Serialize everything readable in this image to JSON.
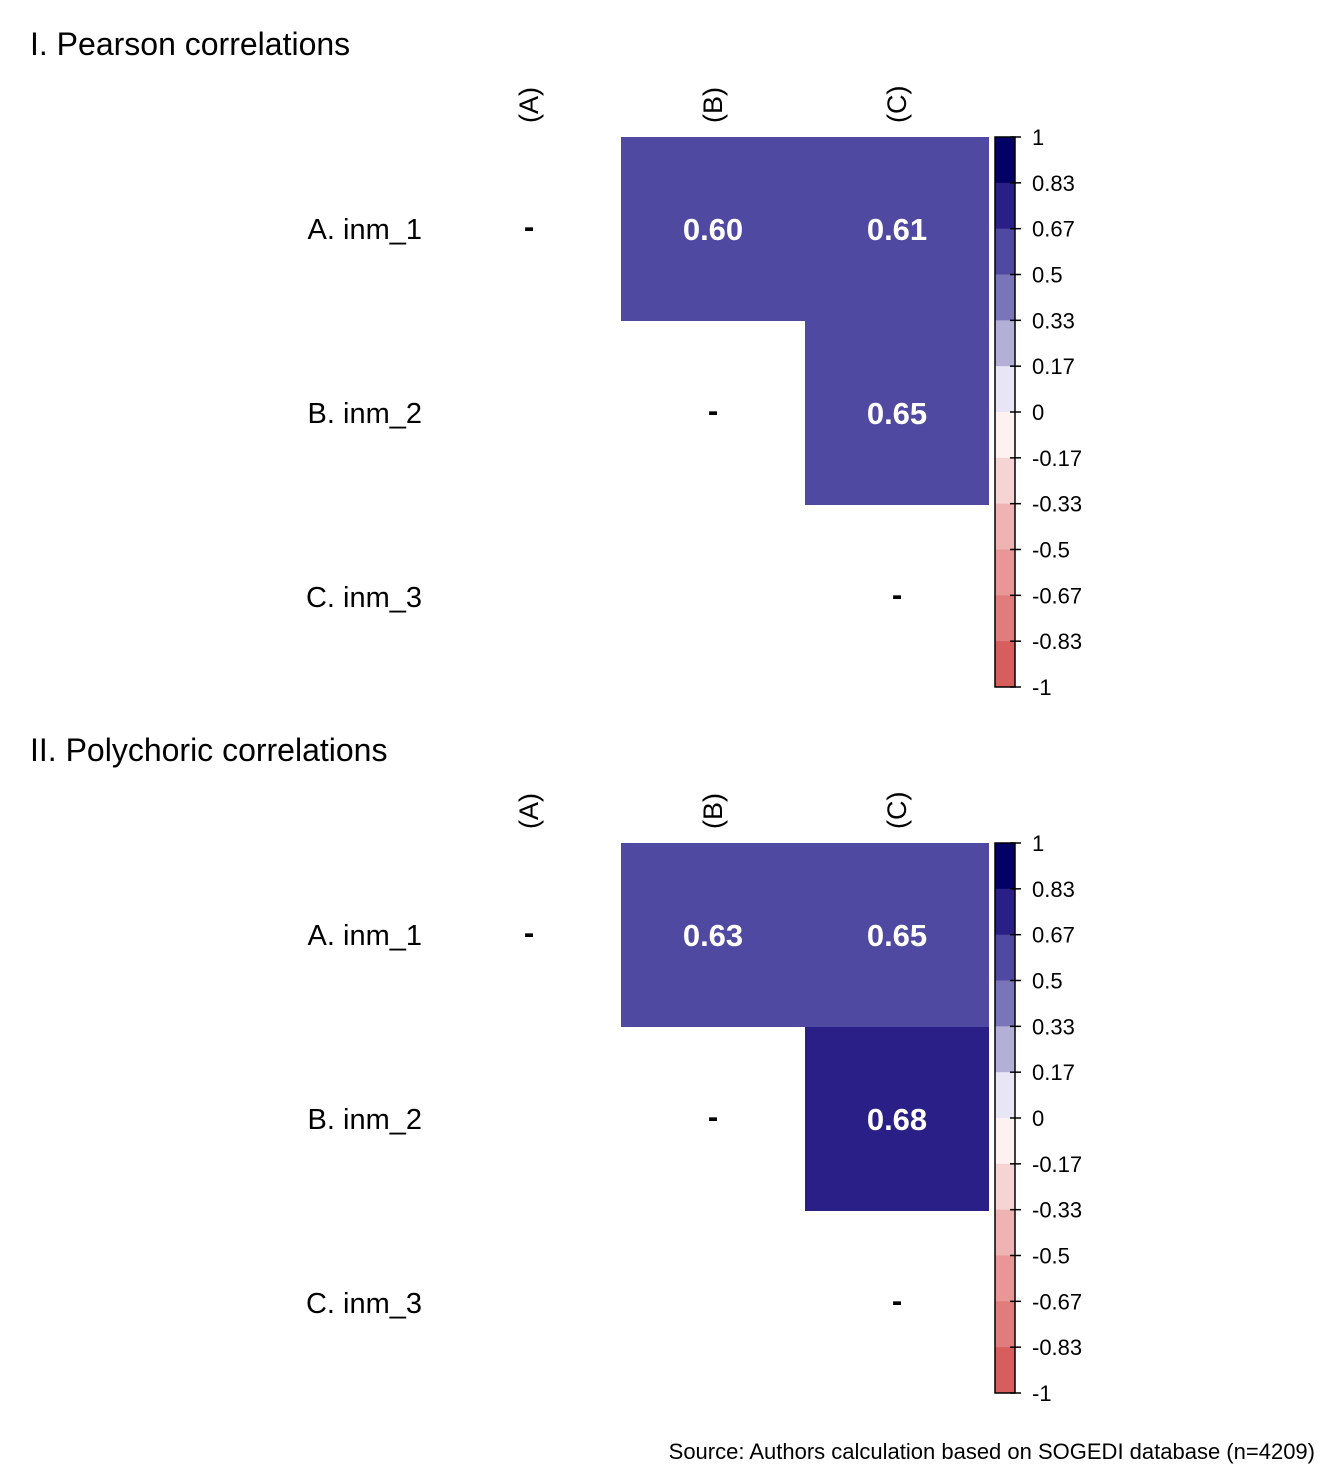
{
  "source": "Source: Authors calculation based on SOGEDI database (n=4209)",
  "colors": {
    "band_0_5": "#5049a1",
    "band_0_67": "#291f86"
  },
  "chart_data": [
    {
      "type": "heatmap",
      "title": "I. Pearson correlations",
      "row_labels": [
        "A. inm_1",
        "B. inm_2",
        "C. inm_3"
      ],
      "col_labels": [
        "(A)",
        "(B)",
        "(C)"
      ],
      "diagonal_mark": "-",
      "cells": [
        {
          "row": 0,
          "col": 1,
          "value": 0.6,
          "label": "0.60"
        },
        {
          "row": 0,
          "col": 2,
          "value": 0.61,
          "label": "0.61"
        },
        {
          "row": 1,
          "col": 2,
          "value": 0.65,
          "label": "0.65"
        }
      ],
      "legend": {
        "ticks": [
          "1",
          "0.83",
          "0.67",
          "0.5",
          "0.33",
          "0.17",
          "0",
          "-0.17",
          "-0.33",
          "-0.5",
          "-0.67",
          "-0.83",
          "-1"
        ],
        "bands": [
          "#030066",
          "#291f86",
          "#5049a1",
          "#7a74b8",
          "#b4afd6",
          "#e8e6f4",
          "#fdf1f1",
          "#f6d4d4",
          "#efb3b3",
          "#e89696",
          "#e07c7c",
          "#d85d5d"
        ]
      }
    },
    {
      "type": "heatmap",
      "title": "II. Polychoric correlations",
      "row_labels": [
        "A. inm_1",
        "B. inm_2",
        "C. inm_3"
      ],
      "col_labels": [
        "(A)",
        "(B)",
        "(C)"
      ],
      "diagonal_mark": "-",
      "cells": [
        {
          "row": 0,
          "col": 1,
          "value": 0.63,
          "label": "0.63"
        },
        {
          "row": 0,
          "col": 2,
          "value": 0.65,
          "label": "0.65"
        },
        {
          "row": 1,
          "col": 2,
          "value": 0.68,
          "label": "0.68"
        }
      ],
      "legend": {
        "ticks": [
          "1",
          "0.83",
          "0.67",
          "0.5",
          "0.33",
          "0.17",
          "0",
          "-0.17",
          "-0.33",
          "-0.5",
          "-0.67",
          "-0.83",
          "-1"
        ],
        "bands": [
          "#030066",
          "#291f86",
          "#5049a1",
          "#7a74b8",
          "#b4afd6",
          "#e8e6f4",
          "#fdf1f1",
          "#f6d4d4",
          "#efb3b3",
          "#e89696",
          "#e07c7c",
          "#d85d5d"
        ]
      }
    }
  ]
}
